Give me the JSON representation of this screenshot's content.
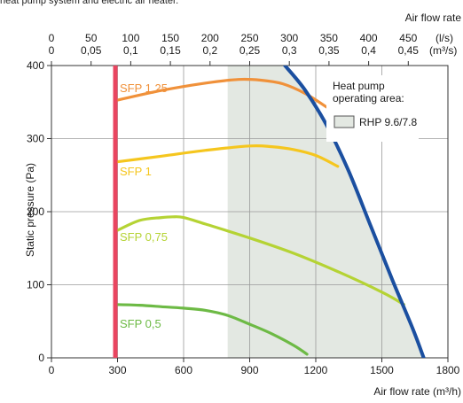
{
  "caption": "heat pump system and electric air heater.",
  "chart_data": {
    "type": "line",
    "title": "",
    "xlabel": "Air flow rate (m³/h)",
    "ylabel": "Static pressure (Pa)",
    "xlim": [
      0,
      1800
    ],
    "ylim": [
      0,
      400
    ],
    "x_ticks": [
      "0",
      "300",
      "600",
      "900",
      "1200",
      "1500",
      "1800"
    ],
    "y_ticks": [
      "0",
      "100",
      "200",
      "300",
      "400"
    ],
    "top_axis": {
      "title": "Air flow rate",
      "unit_ls": "(l/s)",
      "unit_m3s": "(m³/s)",
      "ls_ticks": [
        "0",
        "50",
        "100",
        "150",
        "200",
        "250",
        "300",
        "350",
        "400",
        "450"
      ],
      "m3s_ticks": [
        "0",
        "0,05",
        "0,1",
        "0,15",
        "0,2",
        "0,25",
        "0,3",
        "0,35",
        "0,4",
        "0,45"
      ]
    },
    "operating_area": {
      "label": "RHP 9.6/7.8",
      "x_start": 800,
      "color": "#e3e8e2"
    },
    "legend": {
      "title_line1": "Heat pump",
      "title_line2": "operating area:",
      "placement": "top-right"
    },
    "series": [
      {
        "name": "SFP 1,25",
        "color": "#f0913a",
        "x": [
          290,
          500,
          700,
          850,
          950,
          1050,
          1150,
          1250
        ],
        "y": [
          352,
          366,
          376,
          381,
          380,
          375,
          362,
          343
        ]
      },
      {
        "name": "SFP 1",
        "color": "#f5c61e",
        "x": [
          290,
          500,
          700,
          900,
          1000,
          1100,
          1200,
          1300
        ],
        "y": [
          268,
          276,
          284,
          290,
          289,
          285,
          277,
          262
        ]
      },
      {
        "name": "SFP 0,75",
        "color": "#b5d334",
        "x": [
          290,
          400,
          500,
          550,
          600,
          700,
          900,
          1100,
          1300,
          1500,
          1600
        ],
        "y": [
          173,
          188,
          192,
          193,
          192,
          183,
          164,
          143,
          118,
          90,
          73
        ]
      },
      {
        "name": "SFP 0,5",
        "color": "#6dba45",
        "x": [
          290,
          400,
          500,
          600,
          700,
          800,
          900,
          1000,
          1100,
          1160
        ],
        "y": [
          73,
          72,
          70,
          68,
          65,
          58,
          46,
          33,
          17,
          5
        ]
      }
    ],
    "limits": [
      {
        "name": "",
        "color": "#e94560",
        "x": [
          290,
          290
        ],
        "y": [
          0,
          400
        ]
      },
      {
        "name": "",
        "color": "#1b4fa0",
        "x": [
          1060,
          1150,
          1250,
          1350,
          1450,
          1550,
          1640,
          1690
        ],
        "y": [
          400,
          367,
          318,
          255,
          180,
          105,
          40,
          0
        ]
      }
    ]
  }
}
